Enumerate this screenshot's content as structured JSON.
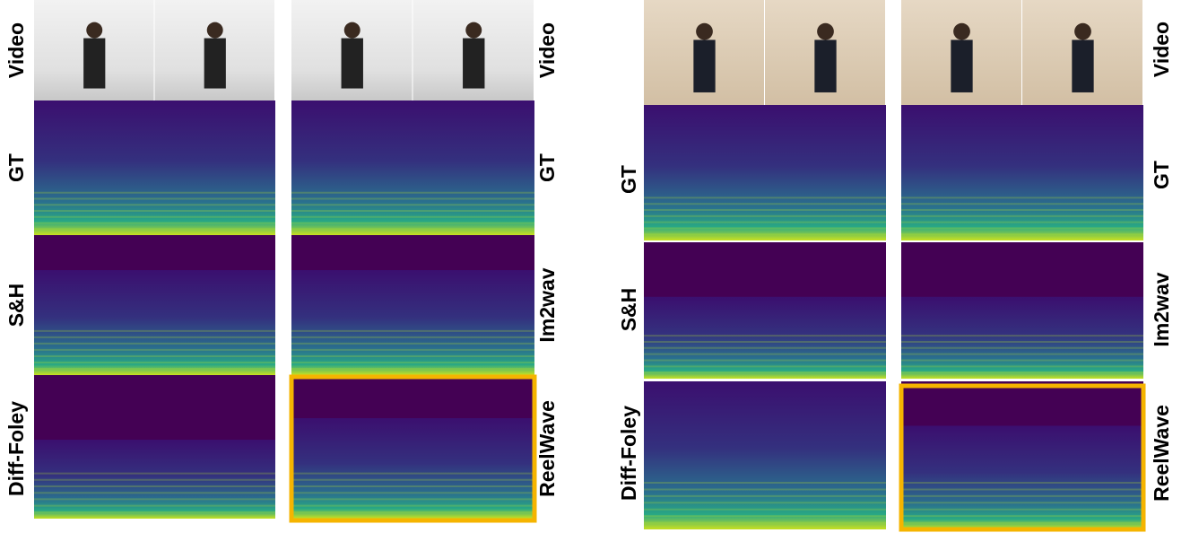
{
  "figure": {
    "panels": [
      {
        "left_labels": [
          "Video",
          "GT",
          "S&H",
          "Diff-Foley"
        ],
        "right_labels": [
          "Video",
          "GT",
          "Im2wav",
          "ReelWave"
        ]
      },
      {
        "left_labels": [
          "GT",
          "S&H",
          "Diff-Foley"
        ],
        "right_labels": [
          "Video",
          "GT",
          "Im2wav",
          "ReelWave"
        ]
      }
    ]
  }
}
